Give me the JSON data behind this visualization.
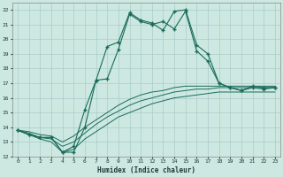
{
  "title": "",
  "xlabel": "Humidex (Indice chaleur)",
  "bg_color": "#cce8e0",
  "grid_color": "#aacccc",
  "line_color": "#1a6b5a",
  "xlim": [
    -0.5,
    23.5
  ],
  "ylim": [
    12,
    22.5
  ],
  "xticks": [
    0,
    1,
    2,
    3,
    4,
    5,
    6,
    7,
    8,
    9,
    10,
    11,
    12,
    13,
    14,
    15,
    16,
    17,
    18,
    19,
    20,
    21,
    22,
    23
  ],
  "yticks": [
    12,
    13,
    14,
    15,
    16,
    17,
    18,
    19,
    20,
    21,
    22
  ],
  "line1_y": [
    13.8,
    13.5,
    13.3,
    13.3,
    12.3,
    12.3,
    14.0,
    17.2,
    17.3,
    19.3,
    21.7,
    21.2,
    21.0,
    21.2,
    20.7,
    21.9,
    19.2,
    18.5,
    17.0,
    16.7,
    16.5,
    16.7,
    16.6,
    16.7
  ],
  "line2_y": [
    13.8,
    13.5,
    13.3,
    13.3,
    12.3,
    12.7,
    15.2,
    17.2,
    19.5,
    19.8,
    21.8,
    21.3,
    21.1,
    20.6,
    21.9,
    22.0,
    19.6,
    19.0,
    17.0,
    16.7,
    16.5,
    16.8,
    16.7,
    16.7
  ],
  "line3_y": [
    13.8,
    13.7,
    13.5,
    13.4,
    13.0,
    13.4,
    14.0,
    14.5,
    15.0,
    15.5,
    15.9,
    16.2,
    16.4,
    16.5,
    16.7,
    16.8,
    16.8,
    16.8,
    16.8,
    16.8,
    16.8,
    16.8,
    16.8,
    16.8
  ],
  "line4_y": [
    13.8,
    13.6,
    13.3,
    13.2,
    12.7,
    13.0,
    13.6,
    14.2,
    14.7,
    15.1,
    15.5,
    15.8,
    16.0,
    16.2,
    16.4,
    16.5,
    16.6,
    16.6,
    16.7,
    16.7,
    16.7,
    16.7,
    16.7,
    16.7
  ],
  "line5_y": [
    13.8,
    13.5,
    13.2,
    13.0,
    12.3,
    12.5,
    13.2,
    13.7,
    14.2,
    14.7,
    15.0,
    15.3,
    15.6,
    15.8,
    16.0,
    16.1,
    16.2,
    16.3,
    16.4,
    16.4,
    16.4,
    16.4,
    16.4,
    16.4
  ]
}
